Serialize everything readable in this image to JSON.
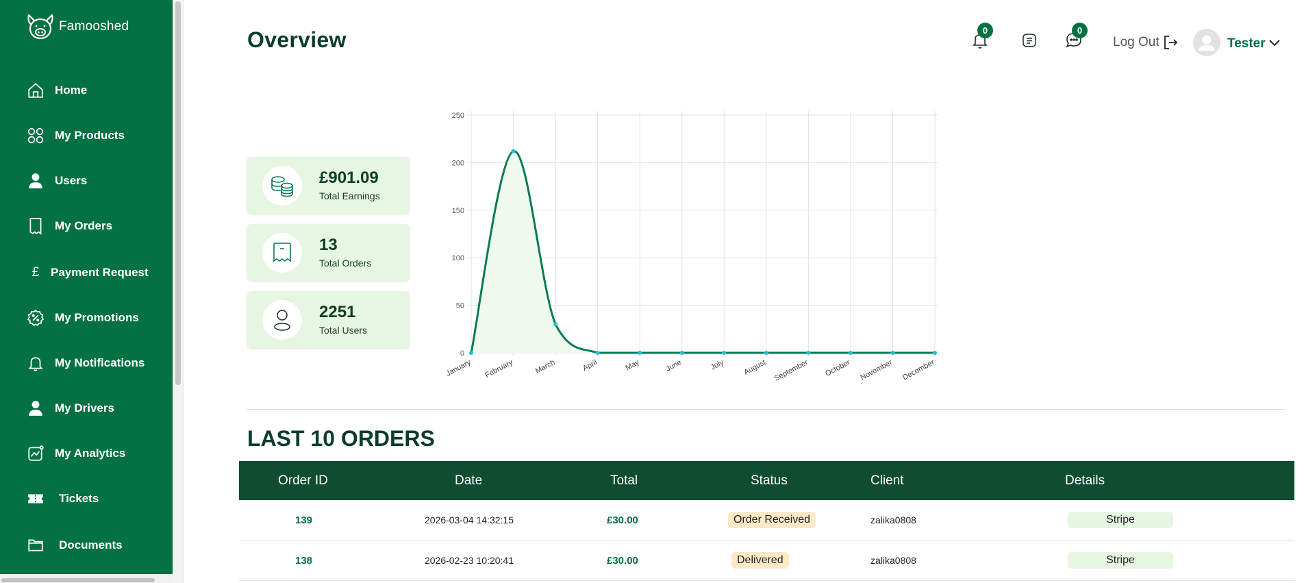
{
  "app": {
    "brand": "Famooshed"
  },
  "sidebar": {
    "items": [
      {
        "label": "Home",
        "icon": "home-icon"
      },
      {
        "label": "My Products",
        "icon": "grid-icon"
      },
      {
        "label": "Users",
        "icon": "user-icon"
      },
      {
        "label": "My Orders",
        "icon": "receipt-icon"
      },
      {
        "label": "Payment Request",
        "icon": "pound-icon"
      },
      {
        "label": "My Promotions",
        "icon": "discount-icon"
      },
      {
        "label": "My Notifications",
        "icon": "bell-icon"
      },
      {
        "label": "My Drivers",
        "icon": "driver-icon"
      },
      {
        "label": "My Analytics",
        "icon": "analytics-icon"
      },
      {
        "label": "Tickets",
        "icon": "ticket-icon"
      },
      {
        "label": "Documents",
        "icon": "folder-icon"
      }
    ]
  },
  "header": {
    "title": "Overview",
    "notifications_count": "0",
    "messages_count": "0",
    "logout_label": "Log Out",
    "user_name": "Tester"
  },
  "stats": [
    {
      "value": "£901.09",
      "label": "Total Earnings",
      "icon": "coins-icon"
    },
    {
      "value": "13",
      "label": "Total Orders",
      "icon": "receipt-icon"
    },
    {
      "value": "2251",
      "label": "Total Users",
      "icon": "user-icon"
    }
  ],
  "chart_data": {
    "type": "area",
    "categories": [
      "January",
      "February",
      "March",
      "April",
      "May",
      "June",
      "July",
      "August",
      "September",
      "October",
      "November",
      "December"
    ],
    "values": [
      0,
      212,
      30,
      0,
      0,
      0,
      0,
      0,
      0,
      0,
      0,
      0
    ],
    "ylim": [
      0,
      250
    ],
    "yticks": [
      0,
      50,
      100,
      150,
      200,
      250
    ],
    "grid": true,
    "colors": {
      "line": "#0b7a55",
      "fill": "#eefbec",
      "point": "#1fc0d6"
    }
  },
  "orders": {
    "title": "LAST 10 ORDERS",
    "columns": [
      "Order ID",
      "Date",
      "Total",
      "Status",
      "Client",
      "Details"
    ],
    "rows": [
      {
        "id": "139",
        "date": "2026-03-04 14:32:15",
        "total": "£30.00",
        "status": "Order Received",
        "client": "zalika0808",
        "details": "Stripe"
      },
      {
        "id": "138",
        "date": "2026-02-23 10:20:41",
        "total": "£30.00",
        "status": "Delivered",
        "client": "zalika0808",
        "details": "Stripe"
      }
    ]
  }
}
